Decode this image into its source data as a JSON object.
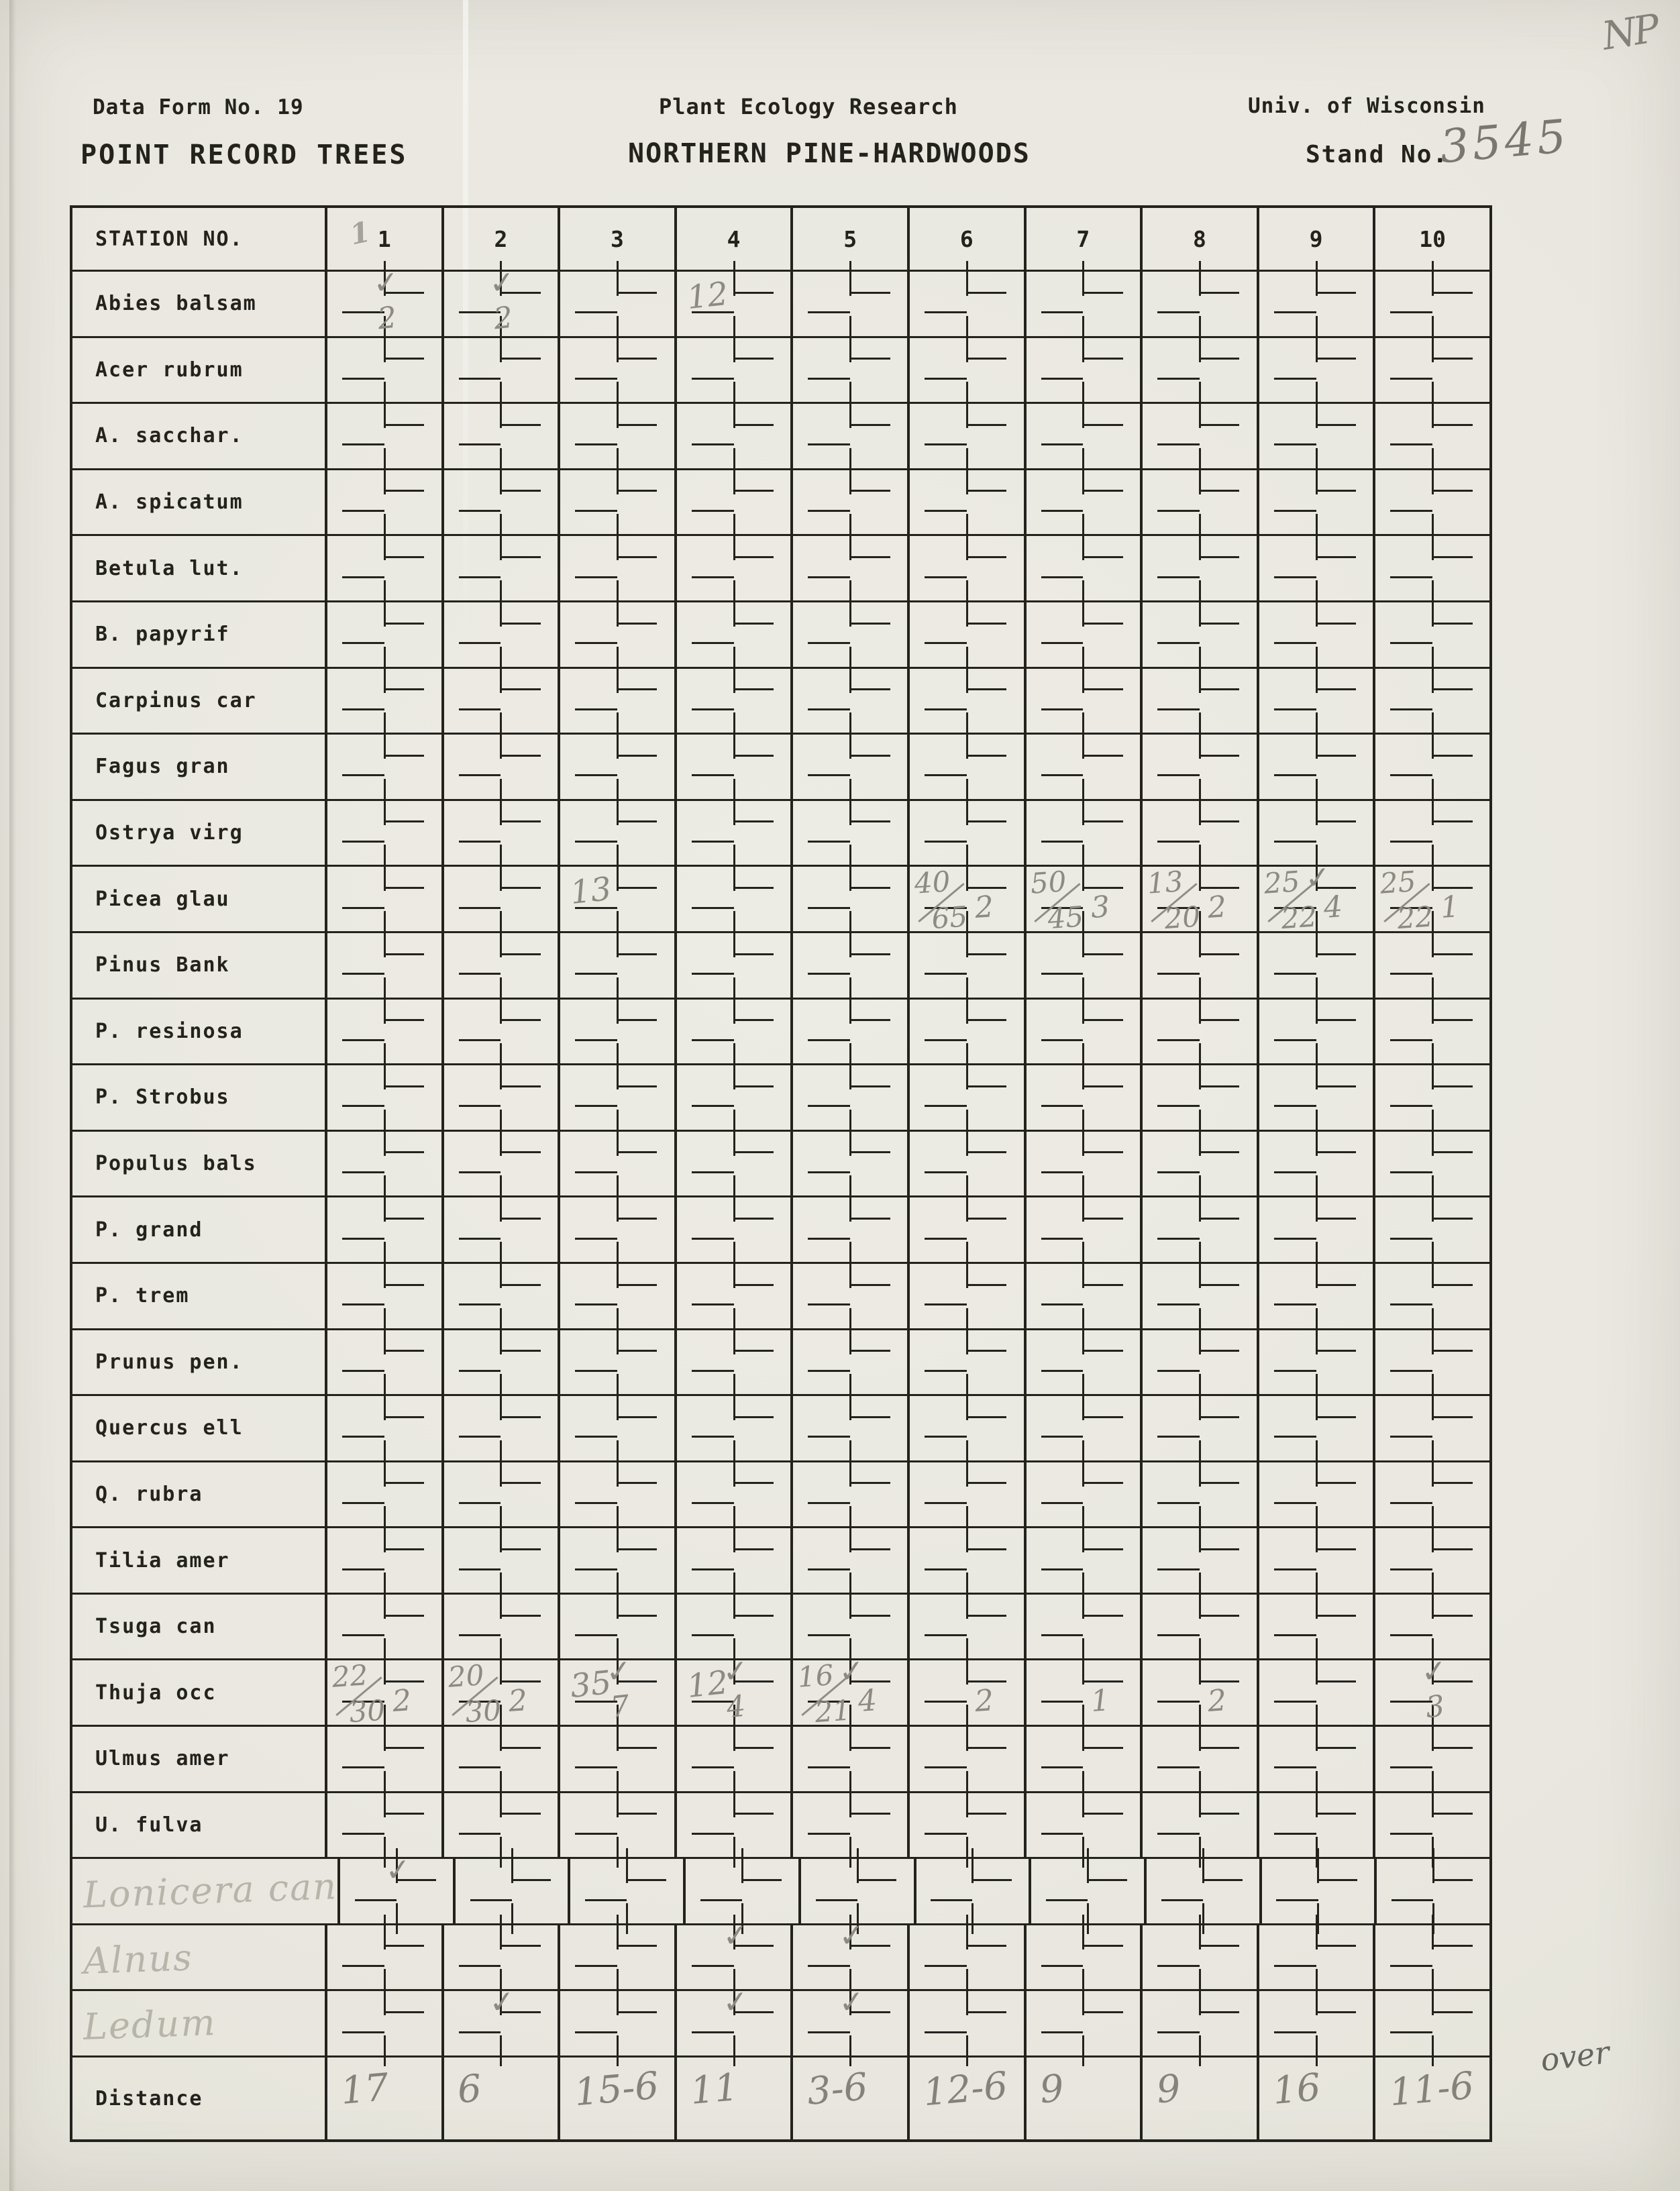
{
  "header": {
    "form_no": "Data Form No. 19",
    "title_left": "POINT RECORD TREES",
    "project": "Plant Ecology Research",
    "title_center": "NORTHERN PINE-HARDWOODS",
    "org": "Univ. of Wisconsin",
    "stand_label": "Stand No.",
    "stand_no_handwritten": "3545",
    "corner_mark": "NP"
  },
  "marks": {
    "check_glyph": "✓"
  },
  "colors": {
    "ink": "#24221d",
    "pencil": "#8d8a81",
    "paper": "#e9e7df"
  },
  "footer_note": "over",
  "table": {
    "station_header": "STATION NO.",
    "station_numbers": [
      "1",
      "2",
      "3",
      "4",
      "5",
      "6",
      "7",
      "8",
      "9",
      "10"
    ],
    "station1_pencil_mark": "1",
    "distance_label": "Distance",
    "distance_values": [
      "17",
      "6",
      "15-6",
      "11",
      "3-6",
      "12-6",
      "9",
      "9",
      "16",
      "11-6"
    ],
    "rows": [
      {
        "label": "Abies balsam",
        "handwritten": false,
        "cells": {
          "1": {
            "check": true,
            "below": "2"
          },
          "2": {
            "check": true,
            "below": "2"
          },
          "4": {
            "left": "12"
          }
        }
      },
      {
        "label": "Acer rubrum",
        "handwritten": false,
        "cells": {}
      },
      {
        "label": "A. sacchar.",
        "handwritten": false,
        "cells": {}
      },
      {
        "label": "A. spicatum",
        "handwritten": false,
        "cells": {}
      },
      {
        "label": "Betula lut.",
        "handwritten": false,
        "cells": {}
      },
      {
        "label": "B. papyrif",
        "handwritten": false,
        "cells": {}
      },
      {
        "label": "Carpinus car",
        "handwritten": false,
        "cells": {}
      },
      {
        "label": "Fagus gran",
        "handwritten": false,
        "cells": {}
      },
      {
        "label": "Ostrya virg",
        "handwritten": false,
        "cells": {}
      },
      {
        "label": "Picea glau",
        "handwritten": false,
        "cells": {
          "3": {
            "left": "13"
          },
          "6": {
            "frac": {
              "n": "40",
              "d": "65"
            },
            "right": "2"
          },
          "7": {
            "frac": {
              "n": "50",
              "d": "45"
            },
            "right": "3"
          },
          "8": {
            "frac": {
              "n": "13",
              "d": "20"
            },
            "right": "2"
          },
          "9": {
            "frac": {
              "n": "25",
              "d": "22"
            },
            "check": true,
            "right": "4"
          },
          "10": {
            "frac": {
              "n": "25",
              "d": "22"
            },
            "right": "1"
          }
        }
      },
      {
        "label": "Pinus Bank",
        "handwritten": false,
        "cells": {}
      },
      {
        "label": "P. resinosa",
        "handwritten": false,
        "cells": {}
      },
      {
        "label": "P. Strobus",
        "handwritten": false,
        "cells": {}
      },
      {
        "label": "Populus bals",
        "handwritten": false,
        "cells": {}
      },
      {
        "label": "P. grand",
        "handwritten": false,
        "cells": {}
      },
      {
        "label": "P. trem",
        "handwritten": false,
        "cells": {}
      },
      {
        "label": "Prunus pen.",
        "handwritten": false,
        "cells": {}
      },
      {
        "label": "Quercus ell",
        "handwritten": false,
        "cells": {}
      },
      {
        "label": "Q. rubra",
        "handwritten": false,
        "cells": {}
      },
      {
        "label": "Tilia amer",
        "handwritten": false,
        "cells": {}
      },
      {
        "label": "Tsuga can",
        "handwritten": false,
        "cells": {}
      },
      {
        "label": "Thuja occ",
        "handwritten": false,
        "cells": {
          "1": {
            "frac": {
              "n": "22",
              "d": "30"
            },
            "right": "2"
          },
          "2": {
            "frac": {
              "n": "20",
              "d": "30"
            },
            "right": "2"
          },
          "3": {
            "left": "35",
            "check": true,
            "below": "7"
          },
          "4": {
            "left": "12",
            "check": true,
            "below": "4"
          },
          "5": {
            "check": true,
            "frac": {
              "n": "16",
              "d": "21"
            },
            "right": "4"
          },
          "6": {
            "right": "2"
          },
          "7": {
            "right": "1"
          },
          "8": {
            "right": "2"
          },
          "10": {
            "check": true,
            "below": "3"
          }
        }
      },
      {
        "label": "Ulmus amer",
        "handwritten": false,
        "cells": {}
      },
      {
        "label": "U. fulva",
        "handwritten": false,
        "cells": {}
      },
      {
        "label": "Lonicera can",
        "handwritten": true,
        "cells": {
          "1": {
            "check": true
          }
        }
      },
      {
        "label": "Alnus",
        "handwritten": true,
        "cells": {
          "4": {
            "check": true
          },
          "5": {
            "check": true
          }
        }
      },
      {
        "label": "Ledum",
        "handwritten": true,
        "cells": {
          "2": {
            "check": true
          },
          "4": {
            "check": true
          },
          "5": {
            "check": true
          }
        }
      }
    ]
  }
}
